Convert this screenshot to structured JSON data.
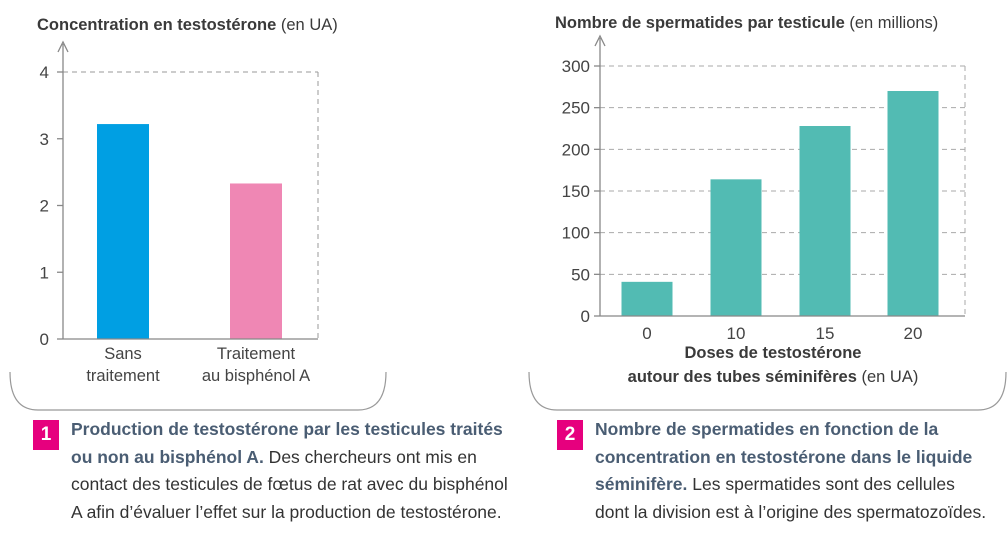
{
  "colors": {
    "accent": "#e6007e",
    "bar_blue": "#009fe3",
    "bar_pink": "#ef87b4",
    "bar_teal": "#52bbb3",
    "bold_text": "#4a5d73"
  },
  "chart_data": [
    {
      "type": "bar",
      "title": "Concentration en testostérone",
      "title_unit": "(en UA)",
      "categories": [
        "Sans traitement",
        "Traitement au bisphénol A"
      ],
      "category_lines": [
        [
          "Sans",
          "traitement"
        ],
        [
          "Traitement",
          "au bisphénol A"
        ]
      ],
      "values": [
        3.22,
        2.33
      ],
      "bar_colors": [
        "#009fe3",
        "#ef87b4"
      ],
      "yticks": [
        "0",
        "1",
        "2",
        "3",
        "4"
      ],
      "ylim": [
        0,
        4
      ],
      "grid": false
    },
    {
      "type": "bar",
      "title": "Nombre de spermatides par testicule",
      "title_unit": "(en millions)",
      "categories": [
        "0",
        "10",
        "15",
        "20"
      ],
      "values": [
        41,
        164,
        228,
        270
      ],
      "bar_color": "#52bbb3",
      "yticks": [
        "0",
        "50",
        "100",
        "150",
        "200",
        "250",
        "300"
      ],
      "ylim": [
        0,
        300
      ],
      "xlabel_line1": "Doses de testostérone",
      "xlabel_line2": "autour des tubes séminifères",
      "xlabel_unit": "(en UA)",
      "grid": true
    }
  ],
  "captions": [
    {
      "number": "1",
      "bold": "Production de testostérone par les testicules traités ou non au bisphénol A.",
      "text": " Des chercheurs ont mis en contact des testicules de fœtus de rat avec du bisphénol A afin d’évaluer l’effet sur la production de testostérone."
    },
    {
      "number": "2",
      "bold": "Nombre de spermatides en fonction de la concentration en testostérone dans le liquide séminifère.",
      "text": " Les spermatides sont des cellules dont la division est à l’origine des spermatozoïdes."
    }
  ]
}
